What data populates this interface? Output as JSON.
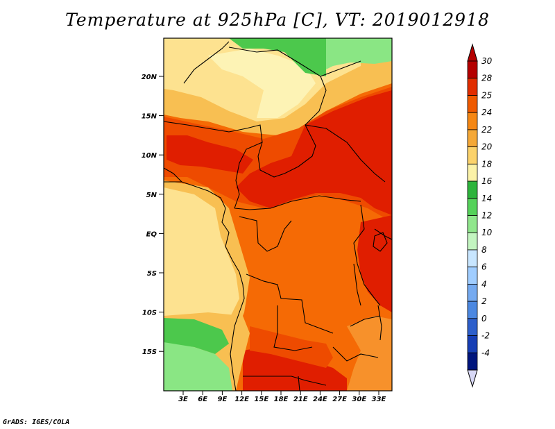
{
  "title": "Temperature at 925hPa [C], VT: 2019012918",
  "footer": "GrADS: IGES/COLA",
  "lat_labels": [
    "20N",
    "15N",
    "10N",
    "5N",
    "EQ",
    "5S",
    "10S",
    "15S"
  ],
  "lon_labels": [
    "3E",
    "6E",
    "9E",
    "12E",
    "15E",
    "18E",
    "21E",
    "24E",
    "27E",
    "30E",
    "33E"
  ],
  "colorbar": {
    "labels": [
      "30",
      "28",
      "25",
      "24",
      "22",
      "20",
      "18",
      "16",
      "14",
      "12",
      "10",
      "8",
      "6",
      "4",
      "2",
      "0",
      "-2",
      "-4"
    ],
    "colors": [
      "#b40000",
      "#e12d00",
      "#ef5a00",
      "#f58714",
      "#f5a837",
      "#fbd26b",
      "#fbf2a8",
      "#2db43c",
      "#55d25a",
      "#90e68c",
      "#c3f5c0",
      "#c8e6ff",
      "#a0cdff",
      "#75aaf0",
      "#4c88e1",
      "#2d5fcb",
      "#163eb5",
      "#00157d"
    ],
    "min_end_color": "#d7d7f5"
  },
  "colors": {
    "deep_red": "#e01e00",
    "red_orange": "#ee4b00",
    "orange": "#f56a05",
    "light_orange": "#f7912b",
    "amber": "#f8bf52",
    "yellow": "#fde290",
    "pale_yellow": "#fdf3b5",
    "green": "#4cc84c",
    "light_green": "#8ae684",
    "pale_green": "#bff2ba"
  }
}
